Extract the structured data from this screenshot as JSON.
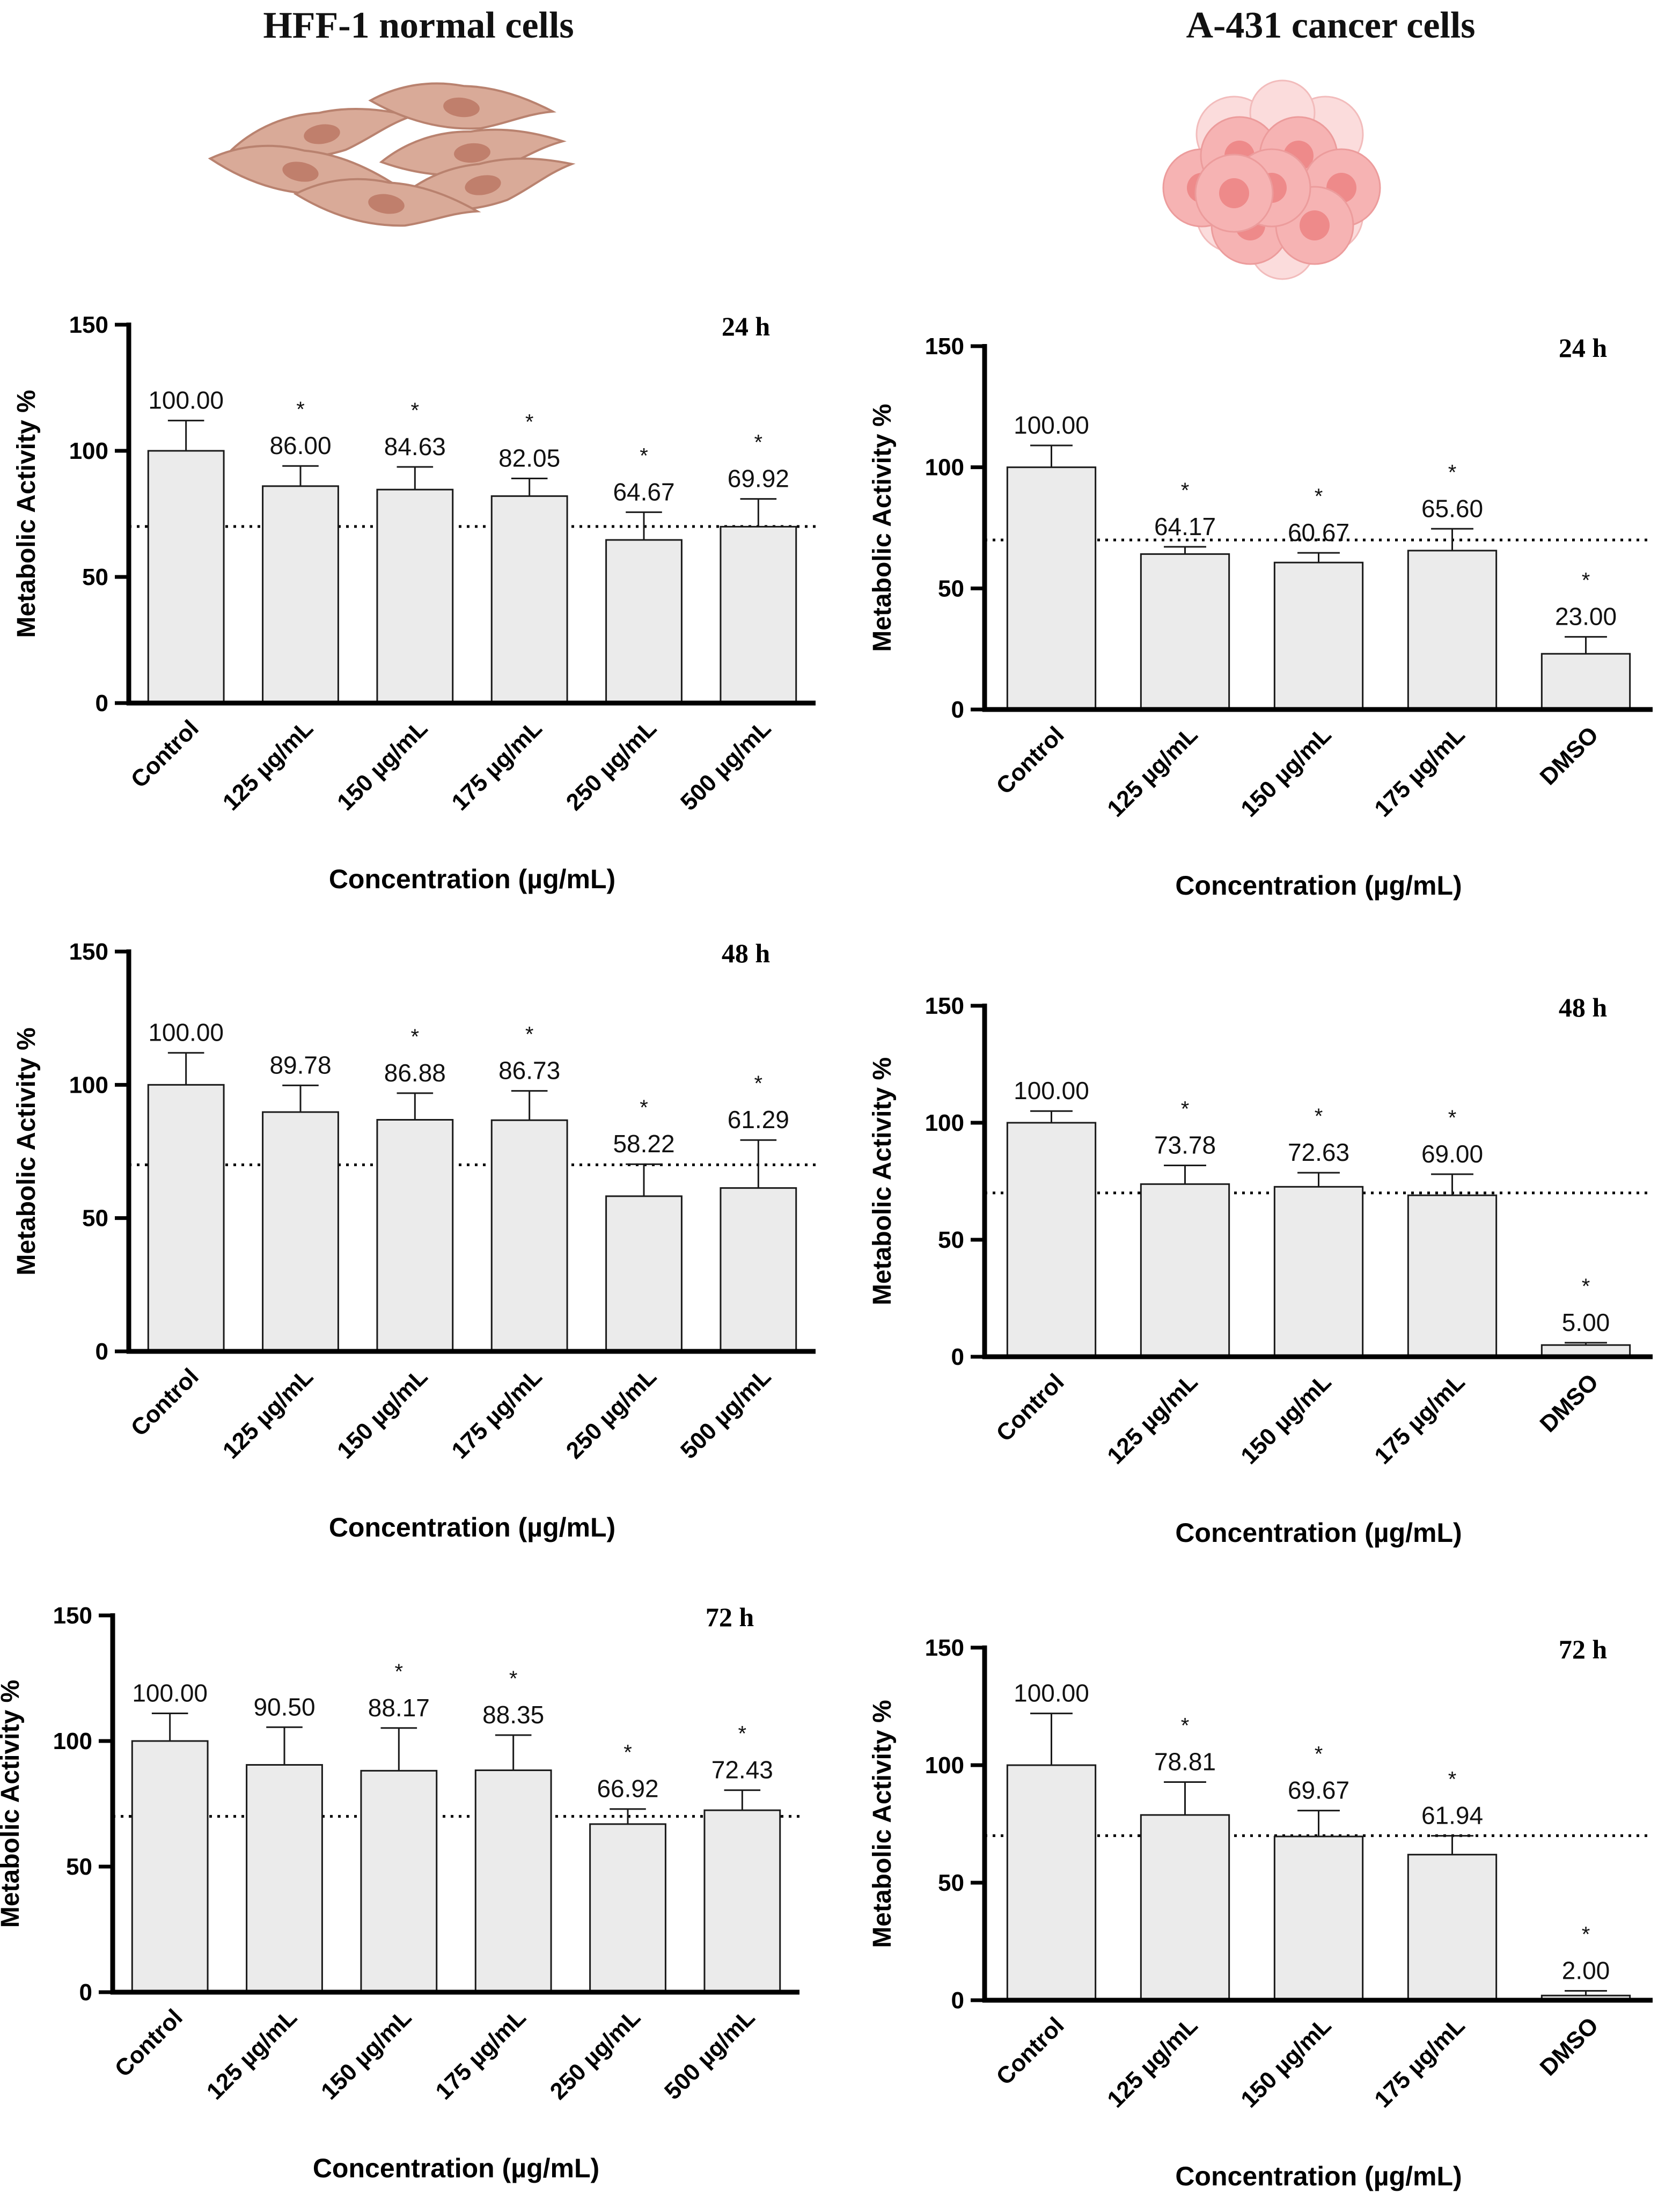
{
  "page": {
    "left_title": "HFF-1 normal cells",
    "right_title": "A-431 cancer cells"
  },
  "colors": {
    "bar_fill": "#ebebeb",
    "bar_stroke": "#1a1a1a",
    "axis": "#000000",
    "threshold_line": "#000000",
    "normal_cell_fill": "#d9aa98",
    "normal_cell_nucleus": "#c07f6c",
    "cancer_cell_fill": "#f6b3b3",
    "cancer_cell_nucleus": "#ee8a8a"
  },
  "chart_data": [
    {
      "type": "bar",
      "panel": "hff1-24h",
      "time_label": "24 h",
      "title": "HFF-1 normal cells",
      "xlabel": "Concentration (µg/mL)",
      "ylabel": "Metabolic Activity %",
      "ylim": [
        0,
        150
      ],
      "yticks": [
        "0",
        "50",
        "100",
        "150"
      ],
      "threshold": 70,
      "categories": [
        "Control",
        "125 µg/mL",
        "150 µg/mL",
        "175 µg/mL",
        "250 µg/mL",
        "500 µg/mL"
      ],
      "values": [
        100.0,
        86.0,
        84.63,
        82.05,
        64.67,
        69.92
      ],
      "value_labels": [
        "100.00",
        "86.00",
        "84.63",
        "82.05",
        "64.67",
        "69.92"
      ],
      "errors": [
        12,
        8,
        9,
        7,
        11,
        11
      ],
      "significance": [
        "",
        "*",
        "*",
        "*",
        "*",
        "*"
      ]
    },
    {
      "type": "bar",
      "panel": "hff1-48h",
      "time_label": "48 h",
      "title": "HFF-1 normal cells",
      "xlabel": "Concentration (µg/mL)",
      "ylabel": "Metabolic Activity %",
      "ylim": [
        0,
        150
      ],
      "yticks": [
        "0",
        "50",
        "100",
        "150"
      ],
      "threshold": 70,
      "categories": [
        "Control",
        "125 µg/mL",
        "150 µg/mL",
        "175 µg/mL",
        "250 µg/mL",
        "500 µg/mL"
      ],
      "values": [
        100.0,
        89.78,
        86.88,
        86.73,
        58.22,
        61.29
      ],
      "value_labels": [
        "100.00",
        "89.78",
        "86.88",
        "86.73",
        "58.22",
        "61.29"
      ],
      "errors": [
        12,
        10,
        10,
        11,
        12,
        18
      ],
      "significance": [
        "",
        "",
        "*",
        "*",
        "*",
        "*"
      ]
    },
    {
      "type": "bar",
      "panel": "hff1-72h",
      "time_label": "72 h",
      "title": "HFF-1 normal cells",
      "xlabel": "Concentration (µg/mL)",
      "ylabel": "Metabolic Activity %",
      "ylim": [
        0,
        150
      ],
      "yticks": [
        "0",
        "50",
        "100",
        "150"
      ],
      "threshold": 70,
      "categories": [
        "Control",
        "125 µg/mL",
        "150 µg/mL",
        "175 µg/mL",
        "250 µg/mL",
        "500 µg/mL"
      ],
      "values": [
        100.0,
        90.5,
        88.17,
        88.35,
        66.92,
        72.43
      ],
      "value_labels": [
        "100.00",
        "90.50",
        "88.17",
        "88.35",
        "66.92",
        "72.43"
      ],
      "errors": [
        11,
        15,
        17,
        14,
        6,
        8
      ],
      "significance": [
        "",
        "",
        "*",
        "*",
        "*",
        "*"
      ]
    },
    {
      "type": "bar",
      "panel": "a431-24h",
      "time_label": "24 h",
      "title": "A-431 cancer cells",
      "xlabel": "Concentration (µg/mL)",
      "ylabel": "Metabolic Activity %",
      "ylim": [
        0,
        150
      ],
      "yticks": [
        "0",
        "50",
        "100",
        "150"
      ],
      "threshold": 70,
      "categories": [
        "Control",
        "125 µg/mL",
        "150 µg/mL",
        "175 µg/mL",
        "DMSO"
      ],
      "values": [
        100.0,
        64.17,
        60.67,
        65.6,
        23.0
      ],
      "value_labels": [
        "100.00",
        "64.17",
        "60.67",
        "65.60",
        "23.00"
      ],
      "errors": [
        9,
        3,
        4,
        9,
        7
      ],
      "significance": [
        "",
        "*",
        "*",
        "*",
        "*"
      ]
    },
    {
      "type": "bar",
      "panel": "a431-48h",
      "time_label": "48 h",
      "title": "A-431 cancer cells",
      "xlabel": "Concentration (µg/mL)",
      "ylabel": "Metabolic Activity %",
      "ylim": [
        0,
        150
      ],
      "yticks": [
        "0",
        "50",
        "100",
        "150"
      ],
      "threshold": 70,
      "categories": [
        "Control",
        "125 µg/mL",
        "150 µg/mL",
        "175 µg/mL",
        "DMSO"
      ],
      "values": [
        100.0,
        73.78,
        72.63,
        69.0,
        5.0
      ],
      "value_labels": [
        "100.00",
        "73.78",
        "72.63",
        "69.00",
        "5.00"
      ],
      "errors": [
        5,
        8,
        6,
        9,
        1
      ],
      "significance": [
        "",
        "*",
        "*",
        "*",
        "*"
      ]
    },
    {
      "type": "bar",
      "panel": "a431-72h",
      "time_label": "72 h",
      "title": "A-431 cancer cells",
      "xlabel": "Concentration (µg/mL)",
      "ylabel": "Metabolic Activity %",
      "ylim": [
        0,
        150
      ],
      "yticks": [
        "0",
        "50",
        "100",
        "150"
      ],
      "threshold": 70,
      "categories": [
        "Control",
        "125 µg/mL",
        "150 µg/mL",
        "175 µg/mL",
        "DMSO"
      ],
      "values": [
        100.0,
        78.81,
        69.67,
        61.94,
        2.0
      ],
      "value_labels": [
        "100.00",
        "78.81",
        "69.67",
        "61.94",
        "2.00"
      ],
      "errors": [
        22,
        14,
        11,
        8,
        2
      ],
      "significance": [
        "",
        "*",
        "*",
        "*",
        "*"
      ]
    }
  ]
}
